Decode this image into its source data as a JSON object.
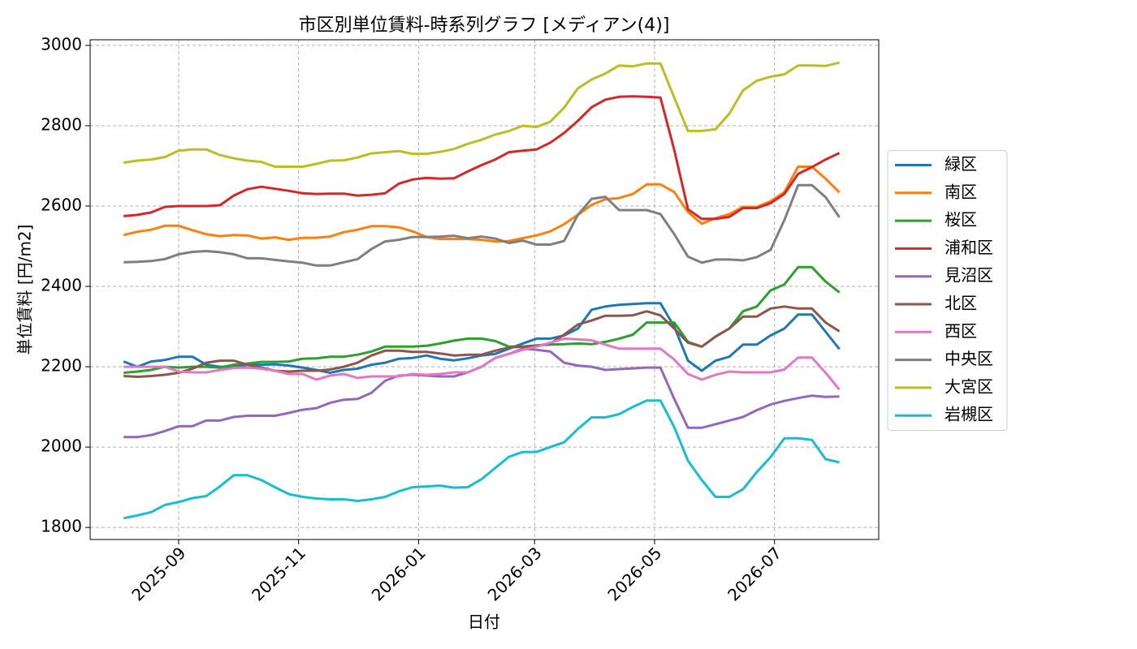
{
  "chart_data": {
    "type": "line",
    "title": "市区別単位賃料-時系列グラフ [メディアン(4)]",
    "xlabel": "日付",
    "ylabel": "単位賃料 [円/m2]",
    "x": [
      "2025-08-04",
      "2025-08-11",
      "2025-08-18",
      "2025-08-25",
      "2025-09-01",
      "2025-09-08",
      "2025-09-15",
      "2025-09-22",
      "2025-09-29",
      "2025-10-06",
      "2025-10-13",
      "2025-10-20",
      "2025-10-27",
      "2025-11-03",
      "2025-11-10",
      "2025-11-17",
      "2025-11-24",
      "2025-12-01",
      "2025-12-08",
      "2025-12-15",
      "2025-12-22",
      "2025-12-29",
      "2026-01-05",
      "2026-01-12",
      "2026-01-19",
      "2026-01-26",
      "2026-02-02",
      "2026-02-09",
      "2026-02-16",
      "2026-02-23",
      "2026-03-02",
      "2026-03-09",
      "2026-03-16",
      "2026-03-23",
      "2026-03-30",
      "2026-04-06",
      "2026-04-13",
      "2026-04-20",
      "2026-04-27",
      "2026-05-04",
      "2026-05-11",
      "2026-05-18",
      "2026-05-25",
      "2026-06-01",
      "2026-06-08",
      "2026-06-15",
      "2026-06-22",
      "2026-06-29",
      "2026-07-06",
      "2026-07-13",
      "2026-07-20",
      "2026-07-27",
      "2026-08-03"
    ],
    "series": [
      {
        "name": "緑区",
        "color": "#1f77b4",
        "values": [
          2213,
          2200,
          2213,
          2217,
          2225,
          2225,
          2205,
          2200,
          2200,
          2205,
          2205,
          2206,
          2203,
          2198,
          2192,
          2185,
          2192,
          2195,
          2205,
          2210,
          2220,
          2222,
          2228,
          2220,
          2216,
          2221,
          2228,
          2232,
          2245,
          2258,
          2270,
          2270,
          2278,
          2295,
          2342,
          2350,
          2354,
          2356,
          2358,
          2358,
          2300,
          2215,
          2190,
          2215,
          2225,
          2255,
          2255,
          2278,
          2295,
          2330,
          2330,
          2287,
          2244
        ]
      },
      {
        "name": "南区",
        "color": "#ff7f0e",
        "values": [
          2528,
          2536,
          2541,
          2551,
          2551,
          2540,
          2530,
          2525,
          2528,
          2527,
          2519,
          2522,
          2516,
          2521,
          2521,
          2524,
          2535,
          2541,
          2550,
          2550,
          2547,
          2537,
          2523,
          2518,
          2518,
          2518,
          2516,
          2512,
          2513,
          2520,
          2527,
          2537,
          2555,
          2578,
          2603,
          2617,
          2620,
          2630,
          2654,
          2654,
          2635,
          2585,
          2556,
          2570,
          2580,
          2598,
          2598,
          2612,
          2635,
          2698,
          2698,
          2668,
          2634
        ]
      },
      {
        "name": "桜区",
        "color": "#2ca02c",
        "values": [
          2185,
          2188,
          2192,
          2200,
          2198,
          2200,
          2200,
          2198,
          2205,
          2208,
          2212,
          2212,
          2213,
          2220,
          2221,
          2225,
          2225,
          2230,
          2238,
          2250,
          2250,
          2250,
          2252,
          2258,
          2265,
          2270,
          2270,
          2264,
          2250,
          2250,
          2253,
          2255,
          2256,
          2258,
          2256,
          2262,
          2270,
          2280,
          2310,
          2310,
          2310,
          2262,
          2250,
          2275,
          2295,
          2338,
          2350,
          2390,
          2405,
          2448,
          2448,
          2412,
          2385
        ]
      },
      {
        "name": "浦和区",
        "color": "#d62728",
        "values": [
          2575,
          2578,
          2584,
          2598,
          2600,
          2600,
          2600,
          2602,
          2626,
          2642,
          2648,
          2643,
          2638,
          2632,
          2630,
          2631,
          2631,
          2626,
          2628,
          2632,
          2656,
          2666,
          2670,
          2668,
          2669,
          2686,
          2702,
          2716,
          2734,
          2738,
          2741,
          2758,
          2782,
          2812,
          2846,
          2865,
          2872,
          2873,
          2872,
          2870,
          2740,
          2592,
          2568,
          2568,
          2573,
          2595,
          2595,
          2607,
          2630,
          2680,
          2697,
          2716,
          2732
        ]
      },
      {
        "name": "見沼区",
        "color": "#9467bd",
        "values": [
          2025,
          2025,
          2030,
          2040,
          2052,
          2052,
          2066,
          2066,
          2075,
          2078,
          2078,
          2078,
          2085,
          2093,
          2097,
          2110,
          2118,
          2120,
          2135,
          2165,
          2178,
          2180,
          2178,
          2176,
          2176,
          2186,
          2200,
          2222,
          2232,
          2245,
          2242,
          2238,
          2210,
          2203,
          2200,
          2192,
          2194,
          2196,
          2198,
          2198,
          2120,
          2048,
          2048,
          2057,
          2066,
          2075,
          2092,
          2106,
          2115,
          2122,
          2128,
          2125,
          2126
        ]
      },
      {
        "name": "北区",
        "color": "#8c564b",
        "values": [
          2177,
          2175,
          2177,
          2180,
          2185,
          2195,
          2210,
          2215,
          2215,
          2205,
          2198,
          2190,
          2188,
          2190,
          2190,
          2193,
          2200,
          2210,
          2228,
          2240,
          2240,
          2237,
          2237,
          2233,
          2228,
          2230,
          2230,
          2240,
          2248,
          2250,
          2252,
          2258,
          2280,
          2305,
          2315,
          2327,
          2327,
          2328,
          2338,
          2328,
          2295,
          2260,
          2250,
          2275,
          2295,
          2325,
          2325,
          2345,
          2350,
          2345,
          2345,
          2310,
          2288
        ]
      },
      {
        "name": "西区",
        "color": "#e377c2",
        "values": [
          2200,
          2200,
          2200,
          2200,
          2188,
          2186,
          2186,
          2192,
          2197,
          2198,
          2195,
          2190,
          2182,
          2182,
          2168,
          2178,
          2182,
          2172,
          2176,
          2176,
          2176,
          2182,
          2180,
          2182,
          2186,
          2186,
          2200,
          2222,
          2232,
          2242,
          2250,
          2260,
          2270,
          2268,
          2266,
          2255,
          2245,
          2245,
          2245,
          2245,
          2218,
          2182,
          2168,
          2180,
          2188,
          2186,
          2186,
          2186,
          2193,
          2223,
          2223,
          2185,
          2143
        ]
      },
      {
        "name": "中央区",
        "color": "#7f7f7f",
        "values": [
          2460,
          2461,
          2463,
          2468,
          2480,
          2486,
          2488,
          2485,
          2480,
          2470,
          2470,
          2466,
          2462,
          2459,
          2452,
          2452,
          2460,
          2468,
          2493,
          2512,
          2516,
          2523,
          2523,
          2524,
          2526,
          2520,
          2524,
          2519,
          2508,
          2514,
          2504,
          2504,
          2513,
          2578,
          2618,
          2623,
          2590,
          2590,
          2590,
          2580,
          2530,
          2474,
          2459,
          2467,
          2467,
          2465,
          2473,
          2491,
          2565,
          2652,
          2652,
          2622,
          2572
        ]
      },
      {
        "name": "大宮区",
        "color": "#bcbd22",
        "values": [
          2708,
          2713,
          2716,
          2722,
          2738,
          2741,
          2741,
          2727,
          2719,
          2713,
          2710,
          2698,
          2698,
          2698,
          2705,
          2713,
          2714,
          2721,
          2731,
          2734,
          2737,
          2730,
          2730,
          2735,
          2742,
          2755,
          2765,
          2778,
          2787,
          2800,
          2797,
          2810,
          2845,
          2893,
          2915,
          2930,
          2950,
          2948,
          2955,
          2955,
          2870,
          2787,
          2787,
          2791,
          2830,
          2888,
          2912,
          2922,
          2928,
          2950,
          2950,
          2949,
          2957
        ]
      },
      {
        "name": "岩槻区",
        "color": "#17becf",
        "values": [
          1823,
          1830,
          1838,
          1856,
          1863,
          1873,
          1878,
          1902,
          1930,
          1930,
          1918,
          1900,
          1883,
          1876,
          1872,
          1870,
          1870,
          1866,
          1870,
          1876,
          1890,
          1900,
          1902,
          1904,
          1899,
          1900,
          1920,
          1948,
          1976,
          1988,
          1988,
          2000,
          2012,
          2045,
          2074,
          2074,
          2082,
          2100,
          2116,
          2116,
          2050,
          1966,
          1918,
          1876,
          1876,
          1895,
          1938,
          1975,
          2022,
          2022,
          2018,
          1970,
          1962
        ]
      }
    ],
    "xlim": [
      "2025-07-18",
      "2026-08-23"
    ],
    "xticks": [
      {
        "value": "2025-09-01",
        "label": "2025-09"
      },
      {
        "value": "2025-11-01",
        "label": "2025-11"
      },
      {
        "value": "2026-01-01",
        "label": "2026-01"
      },
      {
        "value": "2026-03-01",
        "label": "2026-03"
      },
      {
        "value": "2026-05-01",
        "label": "2026-05"
      },
      {
        "value": "2026-07-01",
        "label": "2026-07"
      }
    ],
    "ylim": [
      1770,
      3014
    ],
    "yticks": [
      1800,
      2000,
      2200,
      2400,
      2600,
      2800,
      3000
    ],
    "grid": true,
    "legend": "right"
  }
}
